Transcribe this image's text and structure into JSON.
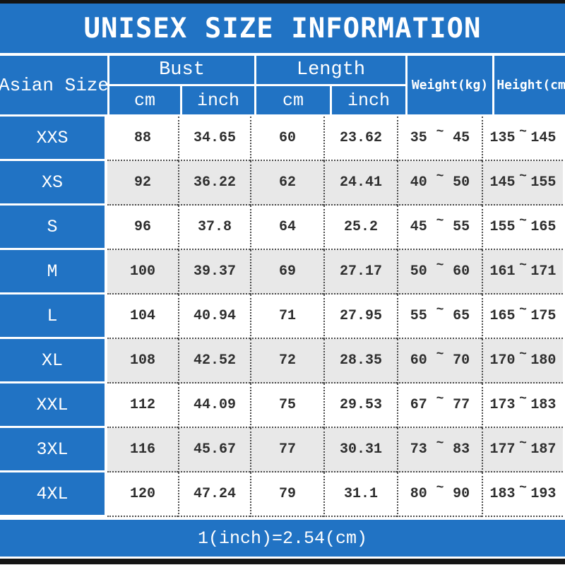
{
  "title": "UNISEX SIZE INFORMATION",
  "footer_note": "1(inch)=2.54(cm)",
  "tilde": "~",
  "colors": {
    "accent_blue": "#2173c4",
    "alt_row_gray": "#e8e8e8",
    "bar_black": "#141414",
    "text_dark": "#2e2e2e"
  },
  "table": {
    "corner_header": "Asian Size",
    "group_headers": {
      "bust": "Bust",
      "length": "Length"
    },
    "sub_headers": {
      "bust_cm": "cm",
      "bust_inch": "inch",
      "length_cm": "cm",
      "length_inch": "inch"
    },
    "weight_header": "Weight(kg)",
    "height_header": "Height(cm)",
    "rows": [
      {
        "size": "XXS",
        "bust_cm": "88",
        "bust_inch": "34.65",
        "length_cm": "60",
        "length_inch": "23.62",
        "weight_min": "35",
        "weight_max": "45",
        "height_min": "135",
        "height_max": "145"
      },
      {
        "size": "XS",
        "bust_cm": "92",
        "bust_inch": "36.22",
        "length_cm": "62",
        "length_inch": "24.41",
        "weight_min": "40",
        "weight_max": "50",
        "height_min": "145",
        "height_max": "155"
      },
      {
        "size": "S",
        "bust_cm": "96",
        "bust_inch": "37.8",
        "length_cm": "64",
        "length_inch": "25.2",
        "weight_min": "45",
        "weight_max": "55",
        "height_min": "155",
        "height_max": "165"
      },
      {
        "size": "M",
        "bust_cm": "100",
        "bust_inch": "39.37",
        "length_cm": "69",
        "length_inch": "27.17",
        "weight_min": "50",
        "weight_max": "60",
        "height_min": "161",
        "height_max": "171"
      },
      {
        "size": "L",
        "bust_cm": "104",
        "bust_inch": "40.94",
        "length_cm": "71",
        "length_inch": "27.95",
        "weight_min": "55",
        "weight_max": "65",
        "height_min": "165",
        "height_max": "175"
      },
      {
        "size": "XL",
        "bust_cm": "108",
        "bust_inch": "42.52",
        "length_cm": "72",
        "length_inch": "28.35",
        "weight_min": "60",
        "weight_max": "70",
        "height_min": "170",
        "height_max": "180"
      },
      {
        "size": "XXL",
        "bust_cm": "112",
        "bust_inch": "44.09",
        "length_cm": "75",
        "length_inch": "29.53",
        "weight_min": "67",
        "weight_max": "77",
        "height_min": "173",
        "height_max": "183"
      },
      {
        "size": "3XL",
        "bust_cm": "116",
        "bust_inch": "45.67",
        "length_cm": "77",
        "length_inch": "30.31",
        "weight_min": "73",
        "weight_max": "83",
        "height_min": "177",
        "height_max": "187"
      },
      {
        "size": "4XL",
        "bust_cm": "120",
        "bust_inch": "47.24",
        "length_cm": "79",
        "length_inch": "31.1",
        "weight_min": "80",
        "weight_max": "90",
        "height_min": "183",
        "height_max": "193"
      }
    ]
  }
}
